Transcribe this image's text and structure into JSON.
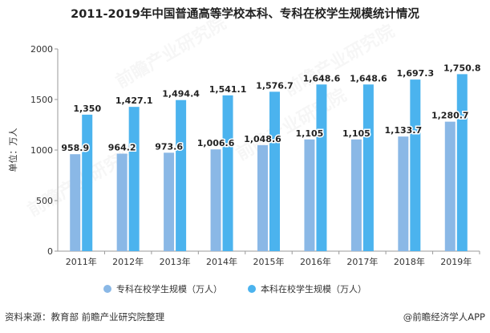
{
  "title": "2011-2019年中国普通高等学校本科、专科在校学生规模统计情况",
  "footer": {
    "source": "资料来源：教育部 前瞻产业研究院整理",
    "brand": "@前瞻经济学人APP"
  },
  "watermark": "前瞻产业研究院",
  "colors": {
    "series1": "#8ab8e6",
    "series2": "#4bb3ee",
    "axis": "#9a9a9a",
    "grid": "#e2e2e2",
    "text": "#333333"
  },
  "chart_data": {
    "type": "bar",
    "categories": [
      "2011年",
      "2012年",
      "2013年",
      "2014年",
      "2015年",
      "2016年",
      "2017年",
      "2018年",
      "2019年"
    ],
    "series": [
      {
        "name": "专科在校学生规模（万人）",
        "values": [
          958.9,
          964.2,
          973.6,
          1006.6,
          1048.6,
          1105,
          1105,
          1133.7,
          1280.7
        ],
        "labels": [
          "958.9",
          "964.2",
          "973.6",
          "1,006.6",
          "1,048.6",
          "1,105",
          "1,105",
          "1,133.7",
          "1,280.7"
        ]
      },
      {
        "name": "本科在校学生规模（万人）",
        "values": [
          1350,
          1427.1,
          1494.4,
          1541.1,
          1576.7,
          1648.6,
          1648.6,
          1697.3,
          1750.8
        ],
        "labels": [
          "1,350",
          "1,427.1",
          "1,494.4",
          "1,541.1",
          "1,576.7",
          "1,648.6",
          "1,648.6",
          "1,697.3",
          "1,750.8"
        ]
      }
    ],
    "ylabel": "单位：万人",
    "ylim": [
      0,
      2000
    ],
    "yticks": [
      "0",
      "500",
      "1000",
      "1500",
      "2000"
    ],
    "legend_position": "bottom",
    "grid": false
  }
}
